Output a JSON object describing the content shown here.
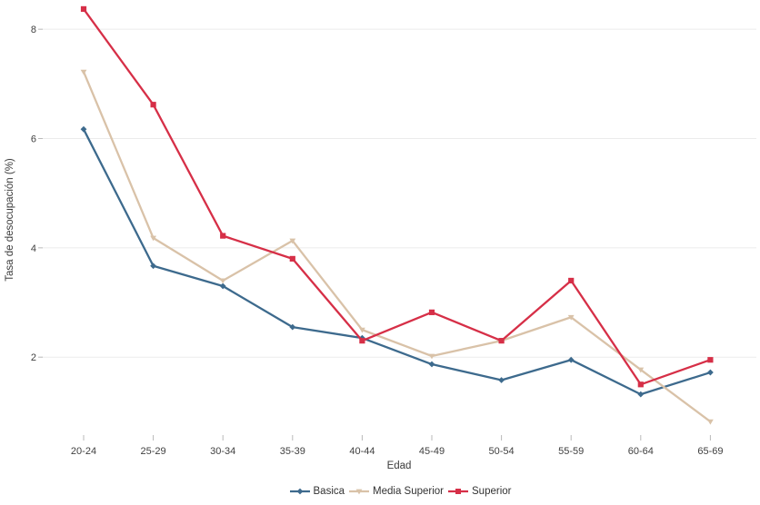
{
  "chart_data": {
    "type": "line",
    "title": "",
    "xlabel": "Edad",
    "ylabel": "Tasa de desocupación (%)",
    "categories": [
      "20-24",
      "25-29",
      "30-34",
      "35-39",
      "40-44",
      "45-49",
      "50-54",
      "55-59",
      "60-64",
      "65-69"
    ],
    "series": [
      {
        "name": "Basica",
        "color": "#3d6a8d",
        "marker": "diamond",
        "values": [
          6.17,
          3.67,
          3.3,
          2.55,
          2.35,
          1.87,
          1.58,
          1.95,
          1.32,
          1.72
        ]
      },
      {
        "name": "Media Superior",
        "color": "#d9c2a8",
        "marker": "triangle-down",
        "values": [
          7.22,
          4.18,
          3.4,
          4.13,
          2.5,
          2.02,
          2.3,
          2.73,
          1.77,
          0.82
        ]
      },
      {
        "name": "Superior",
        "color": "#d62f47",
        "marker": "square",
        "values": [
          8.37,
          6.62,
          4.22,
          3.8,
          2.3,
          2.82,
          2.3,
          3.4,
          1.5,
          1.95
        ]
      }
    ],
    "yticks": [
      "2",
      "4",
      "6",
      "8"
    ],
    "ylim": [
      0.5,
      8.6
    ],
    "grid": "horizontal-only",
    "legend_position": "bottom-center",
    "colors": {
      "background": "#ffffff",
      "gridline": "#ebebeb",
      "tick": "#b8b8b8",
      "text": "#3b3b3b"
    }
  }
}
